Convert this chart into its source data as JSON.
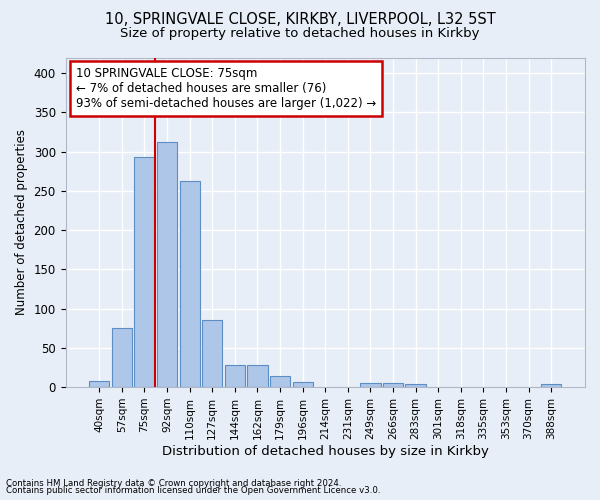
{
  "title1": "10, SPRINGVALE CLOSE, KIRKBY, LIVERPOOL, L32 5ST",
  "title2": "Size of property relative to detached houses in Kirkby",
  "xlabel": "Distribution of detached houses by size in Kirkby",
  "ylabel": "Number of detached properties",
  "categories": [
    "40sqm",
    "57sqm",
    "75sqm",
    "92sqm",
    "110sqm",
    "127sqm",
    "144sqm",
    "162sqm",
    "179sqm",
    "196sqm",
    "214sqm",
    "231sqm",
    "249sqm",
    "266sqm",
    "283sqm",
    "301sqm",
    "318sqm",
    "335sqm",
    "353sqm",
    "370sqm",
    "388sqm"
  ],
  "values": [
    8,
    75,
    293,
    312,
    262,
    85,
    28,
    28,
    14,
    7,
    0,
    0,
    5,
    5,
    4,
    0,
    0,
    0,
    0,
    0,
    4
  ],
  "bar_color": "#aec6e8",
  "bar_edge_color": "#5b8ec4",
  "red_line_index": 2,
  "ann_line1": "10 SPRINGVALE CLOSE: 75sqm",
  "ann_line2": "← 7% of detached houses are smaller (76)",
  "ann_line3": "93% of semi-detached houses are larger (1,022) →",
  "annotation_box_color": "#ffffff",
  "annotation_border_color": "#cc0000",
  "ylim": [
    0,
    420
  ],
  "yticks": [
    0,
    50,
    100,
    150,
    200,
    250,
    300,
    350,
    400
  ],
  "footer1": "Contains HM Land Registry data © Crown copyright and database right 2024.",
  "footer2": "Contains public sector information licensed under the Open Government Licence v3.0.",
  "bg_color": "#e8eef7",
  "plot_bg_color": "#e8eef7",
  "grid_color": "#ffffff",
  "title1_fontsize": 10.5,
  "title2_fontsize": 9.5
}
